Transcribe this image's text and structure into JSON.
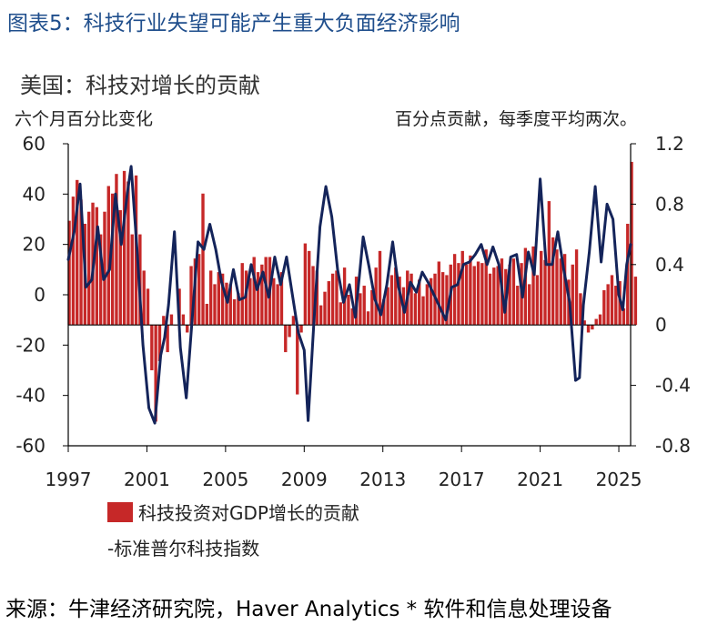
{
  "figure_title": "图表5：科技行业失望可能产生重大负面经济影响",
  "subtitle": "美国：科技对增长的贡献",
  "left_unit": "六个月百分比变化",
  "right_unit": "百分点贡献，每季度平均两次。",
  "source": "来源：牛津经济研究院，Haver Analytics * 软件和信息处理设备",
  "colors": {
    "bar": "#c62828",
    "line": "#14245a",
    "title": "#1f4e8c"
  },
  "chart_data": {
    "type": "bar+line",
    "x_tick_labels": [
      "1997",
      "2001",
      "2005",
      "2009",
      "2013",
      "2017",
      "2021",
      "2025"
    ],
    "x_tick_values": [
      1997,
      2001,
      2005,
      2009,
      2013,
      2017,
      2021,
      2025
    ],
    "xlim": [
      1997,
      2025.6
    ],
    "left_axis": {
      "ylim": [
        -60,
        60
      ],
      "ticks": [
        60,
        40,
        20,
        0,
        -20,
        -40,
        -60
      ],
      "tick_labels": [
        "60",
        "40",
        "20",
        "0",
        "-20",
        "-40",
        "-60"
      ]
    },
    "right_axis": {
      "ylim": [
        -0.8,
        1.2
      ],
      "ticks": [
        1.2,
        0.8,
        0.4,
        0,
        -0.4,
        -0.8
      ],
      "tick_labels": [
        "1.2",
        "0.8",
        "0.4",
        "0",
        "-0.4",
        "-0.8"
      ]
    },
    "series": [
      {
        "name": "科技投资对GDP增长的贡献",
        "axis": "right",
        "kind": "bar",
        "x_start": 1997.05,
        "step": 0.2,
        "values": [
          0.69,
          0.85,
          0.96,
          0.83,
          0.67,
          0.75,
          0.81,
          0.78,
          0.6,
          0.75,
          0.92,
          0.87,
          1.0,
          0.76,
          1.02,
          0.95,
          0.6,
          0.99,
          0.6,
          0.36,
          0.24,
          -0.3,
          -0.64,
          -0.24,
          0.06,
          -0.18,
          0.07,
          0.0,
          0.24,
          0.07,
          -0.05,
          0.39,
          0.44,
          0.47,
          0.87,
          0.14,
          0.36,
          0.27,
          0.35,
          0.34,
          0.28,
          0.27,
          0.17,
          0.21,
          0.41,
          0.36,
          0.31,
          0.45,
          0.35,
          0.4,
          0.45,
          0.45,
          0.31,
          0.27,
          0.35,
          -0.18,
          -0.08,
          0.06,
          -0.46,
          -0.05,
          0.54,
          0.49,
          0.39,
          0.36,
          0.13,
          0.22,
          0.29,
          0.34,
          0.36,
          0.15,
          0.38,
          0.2,
          0.11,
          0.32,
          0.21,
          0.26,
          0.09,
          0.23,
          0.38,
          0.49,
          0.17,
          0.25,
          0.33,
          0.38,
          0.32,
          0.25,
          0.36,
          0.34,
          0.21,
          0.3,
          0.19,
          0.27,
          0.31,
          0.34,
          0.42,
          0.35,
          0.33,
          0.4,
          0.47,
          0.41,
          0.49,
          0.4,
          0.46,
          0.39,
          0.42,
          0.41,
          0.5,
          0.34,
          0.38,
          0.39,
          0.44,
          0.37,
          0.4,
          0.44,
          0.26,
          0.41,
          0.51,
          0.27,
          0.52,
          0.33,
          0.49,
          0.43,
          0.82,
          0.58,
          0.5,
          0.44,
          0.47,
          0.3,
          0.4,
          0.5,
          0.21,
          0.03,
          -0.05,
          -0.03,
          0.04,
          0.07,
          0.23,
          0.27,
          0.33,
          0.26,
          0.29,
          0.11,
          0.67,
          1.08,
          0.32
        ]
      },
      {
        "name": "-标准普尔科技指数",
        "axis": "left",
        "kind": "line",
        "points": [
          [
            1997.0,
            14
          ],
          [
            1997.3,
            25
          ],
          [
            1997.6,
            44
          ],
          [
            1997.9,
            3
          ],
          [
            1998.2,
            6
          ],
          [
            1998.5,
            27
          ],
          [
            1998.8,
            6
          ],
          [
            1999.1,
            10
          ],
          [
            1999.4,
            40
          ],
          [
            1999.7,
            20
          ],
          [
            2000.0,
            40
          ],
          [
            2000.2,
            51
          ],
          [
            2000.5,
            18
          ],
          [
            2000.8,
            -20
          ],
          [
            2001.1,
            -45
          ],
          [
            2001.4,
            -51
          ],
          [
            2001.7,
            -24
          ],
          [
            2001.9,
            -17
          ],
          [
            2002.1,
            -4
          ],
          [
            2002.4,
            25
          ],
          [
            2002.7,
            -21
          ],
          [
            2003.0,
            -41
          ],
          [
            2003.3,
            -10
          ],
          [
            2003.6,
            21
          ],
          [
            2003.9,
            18
          ],
          [
            2004.2,
            28
          ],
          [
            2004.5,
            18
          ],
          [
            2004.8,
            5
          ],
          [
            2005.1,
            -3
          ],
          [
            2005.4,
            10
          ],
          [
            2005.7,
            -2
          ],
          [
            2006.0,
            -1
          ],
          [
            2006.3,
            12
          ],
          [
            2006.6,
            2
          ],
          [
            2006.9,
            9
          ],
          [
            2007.2,
            -1
          ],
          [
            2007.5,
            15
          ],
          [
            2007.8,
            4
          ],
          [
            2008.1,
            15
          ],
          [
            2008.4,
            0
          ],
          [
            2008.7,
            -15
          ],
          [
            2009.0,
            -22
          ],
          [
            2009.2,
            -50
          ],
          [
            2009.5,
            -10
          ],
          [
            2009.8,
            27
          ],
          [
            2010.1,
            43
          ],
          [
            2010.4,
            31
          ],
          [
            2010.7,
            10
          ],
          [
            2011.0,
            -3
          ],
          [
            2011.3,
            4
          ],
          [
            2011.6,
            -9
          ],
          [
            2012.0,
            23
          ],
          [
            2012.3,
            11
          ],
          [
            2012.6,
            -2
          ],
          [
            2012.9,
            -8
          ],
          [
            2013.2,
            4
          ],
          [
            2013.5,
            21
          ],
          [
            2013.8,
            3
          ],
          [
            2014.1,
            -7
          ],
          [
            2014.4,
            5
          ],
          [
            2014.7,
            1
          ],
          [
            2015.0,
            9
          ],
          [
            2015.3,
            5
          ],
          [
            2015.6,
            0
          ],
          [
            2015.9,
            -5
          ],
          [
            2016.2,
            -10
          ],
          [
            2016.5,
            3
          ],
          [
            2016.8,
            4
          ],
          [
            2017.1,
            12
          ],
          [
            2017.4,
            13
          ],
          [
            2017.7,
            16
          ],
          [
            2018.0,
            20
          ],
          [
            2018.3,
            12
          ],
          [
            2018.6,
            19
          ],
          [
            2018.9,
            12
          ],
          [
            2019.2,
            -7
          ],
          [
            2019.5,
            15
          ],
          [
            2019.8,
            16
          ],
          [
            2020.1,
            -1
          ],
          [
            2020.4,
            17
          ],
          [
            2020.7,
            8
          ],
          [
            2021.0,
            46
          ],
          [
            2021.3,
            12
          ],
          [
            2021.6,
            12
          ],
          [
            2021.9,
            25
          ],
          [
            2022.2,
            10
          ],
          [
            2022.5,
            -3
          ],
          [
            2022.8,
            -34
          ],
          [
            2023.0,
            -33
          ],
          [
            2023.2,
            -4
          ],
          [
            2023.5,
            17
          ],
          [
            2023.8,
            43
          ],
          [
            2024.1,
            13
          ],
          [
            2024.4,
            36
          ],
          [
            2024.7,
            30
          ],
          [
            2025.0,
            0
          ],
          [
            2025.2,
            -6
          ],
          [
            2025.4,
            12
          ],
          [
            2025.6,
            20
          ]
        ]
      }
    ]
  }
}
